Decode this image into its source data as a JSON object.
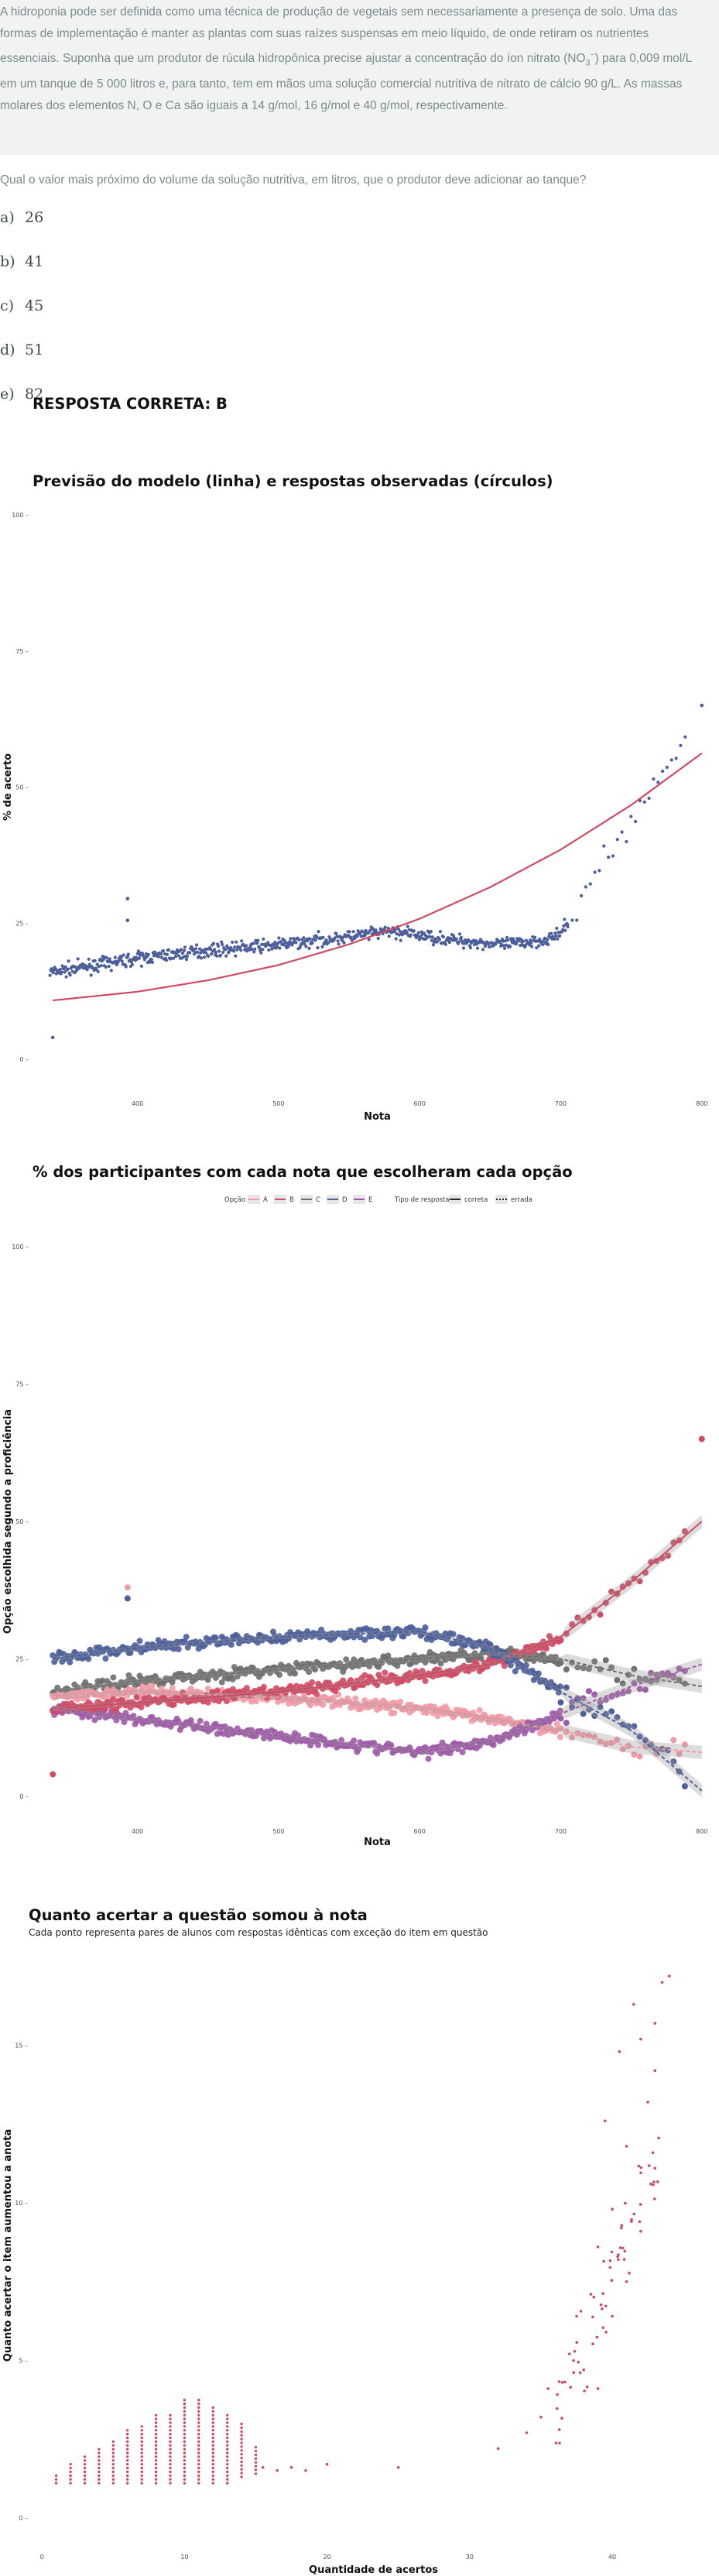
{
  "question": {
    "text_before_sub": "A hidroponia pode ser definida como uma técnica de produção de vegetais sem necessariamente a presença de solo. Uma das formas de implementação é manter as plantas com suas raízes suspensas em meio líquido, de onde retiram os nutrientes essenciais. Suponha que um produtor de rúcula hidropônica precise ajustar a concentração do íon nitrato (NO",
    "sub": "3",
    "sup": "−",
    "text_after_sub": ") para 0,009 mol/L em um tanque de 5 000 litros e, para tanto, tem em mãos uma solução comercial nutritiva de nitrato de cálcio 90 g/L. As massas molares dos elementos N, O e Ca são iguais a 14 g/mol, 16 g/mol e 40 g/mol, respectivamente.",
    "prompt": "Qual o valor mais próximo do volume da solução nutritiva, em litros, que o produtor deve adicionar ao tanque?",
    "options": [
      {
        "letter": "a)",
        "value": "26"
      },
      {
        "letter": "b)",
        "value": "41"
      },
      {
        "letter": "c)",
        "value": "45"
      },
      {
        "letter": "d)",
        "value": "51"
      },
      {
        "letter": "e)",
        "value": "82"
      }
    ],
    "answer": "RESPOSTA CORRETA: B"
  },
  "colors": {
    "blue": "#4c5f9a",
    "red": "#d04a63",
    "pink": "#f29aa5",
    "gray": "#6f6f6f",
    "purple": "#9e5aa7",
    "background_box": "#f1f3f2"
  },
  "chart_data": [
    {
      "type": "scatter",
      "title": "Previsão do modelo (linha) e respostas observadas (círculos)",
      "xlabel": "Nota",
      "ylabel": "% de acerto",
      "xlim": [
        330,
        810
      ],
      "ylim": [
        0,
        100
      ],
      "x_ticks": [
        "400",
        "500",
        "600",
        "700",
        "800"
      ],
      "y_ticks": [
        "0",
        "25",
        "50",
        "75",
        "100"
      ],
      "grid": false,
      "model_curve": {
        "x": [
          340,
          400,
          450,
          500,
          550,
          600,
          650,
          700,
          750,
          800
        ],
        "y": [
          10.8,
          12.4,
          14.5,
          17.3,
          21.1,
          25.8,
          31.6,
          38.5,
          46.7,
          56.2
        ]
      },
      "observed_trend": {
        "x": [
          340,
          400,
          450,
          500,
          550,
          580,
          620,
          660,
          690,
          700,
          710,
          720,
          740,
          760,
          780,
          800
        ],
        "y": [
          16,
          18.5,
          20,
          21,
          22.5,
          23.5,
          22,
          21,
          22,
          23,
          27,
          32,
          40,
          48,
          55,
          65
        ]
      },
      "outliers": [
        {
          "x": 340,
          "y": 4
        },
        {
          "x": 393,
          "y": 29.5
        },
        {
          "x": 393,
          "y": 25.5
        }
      ]
    },
    {
      "type": "scatter",
      "title": "% dos participantes com cada nota que escolheram cada opção",
      "xlabel": "Nota",
      "ylabel": "Opção escolhida segundo a proficiência",
      "xlim": [
        330,
        810
      ],
      "ylim": [
        0,
        100
      ],
      "x_ticks": [
        "400",
        "500",
        "600",
        "700",
        "800"
      ],
      "y_ticks": [
        "0",
        "25",
        "50",
        "75",
        "100"
      ],
      "legend": {
        "placement": "top",
        "option_title": "Opção",
        "options": [
          "A",
          "B",
          "C",
          "D",
          "E"
        ],
        "type_title": "Tipo de resposta",
        "types": [
          "correta",
          "errada"
        ]
      },
      "series": [
        {
          "option": "A",
          "x": [
            340,
            400,
            500,
            600,
            650,
            700,
            750,
            800
          ],
          "y": [
            18,
            19,
            18,
            16,
            14,
            12,
            9,
            8
          ]
        },
        {
          "option": "B",
          "x": [
            340,
            400,
            500,
            600,
            650,
            700,
            750,
            800
          ],
          "y": [
            16,
            17,
            19,
            22,
            24,
            29,
            39,
            50
          ]
        },
        {
          "option": "C",
          "x": [
            340,
            400,
            500,
            600,
            650,
            700,
            750,
            800
          ],
          "y": [
            19,
            21,
            23,
            25,
            26,
            25,
            22,
            20
          ]
        },
        {
          "option": "D",
          "x": [
            340,
            400,
            500,
            600,
            650,
            700,
            750,
            800
          ],
          "y": [
            25,
            27,
            29,
            30,
            27,
            19,
            12,
            1
          ]
        },
        {
          "option": "E",
          "x": [
            340,
            400,
            500,
            600,
            650,
            700,
            750,
            800
          ],
          "y": [
            16,
            14,
            11,
            8,
            10,
            15,
            20,
            24
          ]
        }
      ],
      "outliers": [
        {
          "option": "B",
          "x": 340,
          "y": 4
        },
        {
          "option": "B",
          "x": 800,
          "y": 65
        },
        {
          "option": "A",
          "x": 393,
          "y": 38
        },
        {
          "option": "D",
          "x": 393,
          "y": 36
        }
      ]
    },
    {
      "type": "scatter",
      "title": "Quanto acertar a questão somou à nota",
      "subtitle": "Cada ponto representa pares de alunos com respostas idênticas com exceção do item em questão",
      "xlabel": "Quantidade de acertos",
      "ylabel": "Quanto acertar o item aumentou a anota",
      "xlim": [
        -0.5,
        47
      ],
      "ylim": [
        -0.2,
        17.5
      ],
      "x_ticks": [
        "0",
        "10",
        "20",
        "30",
        "40"
      ],
      "y_ticks": [
        "0",
        "5",
        "10",
        "15"
      ],
      "columns": [
        {
          "x": 1,
          "ymin": 1.1,
          "ymax": 1.4
        },
        {
          "x": 2,
          "ymin": 1.1,
          "ymax": 1.7
        },
        {
          "x": 3,
          "ymin": 1.1,
          "ymax": 2.0
        },
        {
          "x": 4,
          "ymin": 1.1,
          "ymax": 2.2
        },
        {
          "x": 5,
          "ymin": 1.1,
          "ymax": 2.5
        },
        {
          "x": 6,
          "ymin": 1.1,
          "ymax": 2.8
        },
        {
          "x": 7,
          "ymin": 1.1,
          "ymax": 3.0
        },
        {
          "x": 8,
          "ymin": 1.1,
          "ymax": 3.3
        },
        {
          "x": 9,
          "ymin": 1.1,
          "ymax": 3.3
        },
        {
          "x": 10,
          "ymin": 1.1,
          "ymax": 3.8
        },
        {
          "x": 11,
          "ymin": 1.1,
          "ymax": 3.8
        },
        {
          "x": 12,
          "ymin": 1.1,
          "ymax": 3.5
        },
        {
          "x": 13,
          "ymin": 1.1,
          "ymax": 3.3
        },
        {
          "x": 14,
          "ymin": 1.3,
          "ymax": 3.0
        },
        {
          "x": 15,
          "ymin": 1.4,
          "ymax": 2.3
        }
      ],
      "points": [
        {
          "x": 15.5,
          "y": 1.6
        },
        {
          "x": 16.5,
          "y": 1.5
        },
        {
          "x": 17.5,
          "y": 1.6
        },
        {
          "x": 18.5,
          "y": 1.5
        },
        {
          "x": 20,
          "y": 1.7
        },
        {
          "x": 25,
          "y": 1.6
        },
        {
          "x": 32,
          "y": 2.2
        },
        {
          "x": 34,
          "y": 2.7
        },
        {
          "x": 35,
          "y": 3.2
        },
        {
          "x": 35.5,
          "y": 4.1
        },
        {
          "x": 36.5,
          "y": 4.3
        },
        {
          "x": 37,
          "y": 5.2
        },
        {
          "x": 37.5,
          "y": 6.4
        },
        {
          "x": 38,
          "y": 4.7
        },
        {
          "x": 38.5,
          "y": 7.1
        },
        {
          "x": 39,
          "y": 8.6
        },
        {
          "x": 39.5,
          "y": 12.6
        },
        {
          "x": 40,
          "y": 9.8
        },
        {
          "x": 40.5,
          "y": 14.8
        },
        {
          "x": 41,
          "y": 11.8
        },
        {
          "x": 41.5,
          "y": 16.3
        },
        {
          "x": 42,
          "y": 15.2
        },
        {
          "x": 42.5,
          "y": 13.2
        },
        {
          "x": 43,
          "y": 15.7
        },
        {
          "x": 43.5,
          "y": 17.0
        },
        {
          "x": 44,
          "y": 17.2
        },
        {
          "x": 41,
          "y": 7.5
        },
        {
          "x": 42,
          "y": 9.1
        },
        {
          "x": 43,
          "y": 11.1
        },
        {
          "x": 43,
          "y": 14.2
        },
        {
          "x": 40,
          "y": 6.4
        },
        {
          "x": 39,
          "y": 4.1
        }
      ]
    }
  ]
}
